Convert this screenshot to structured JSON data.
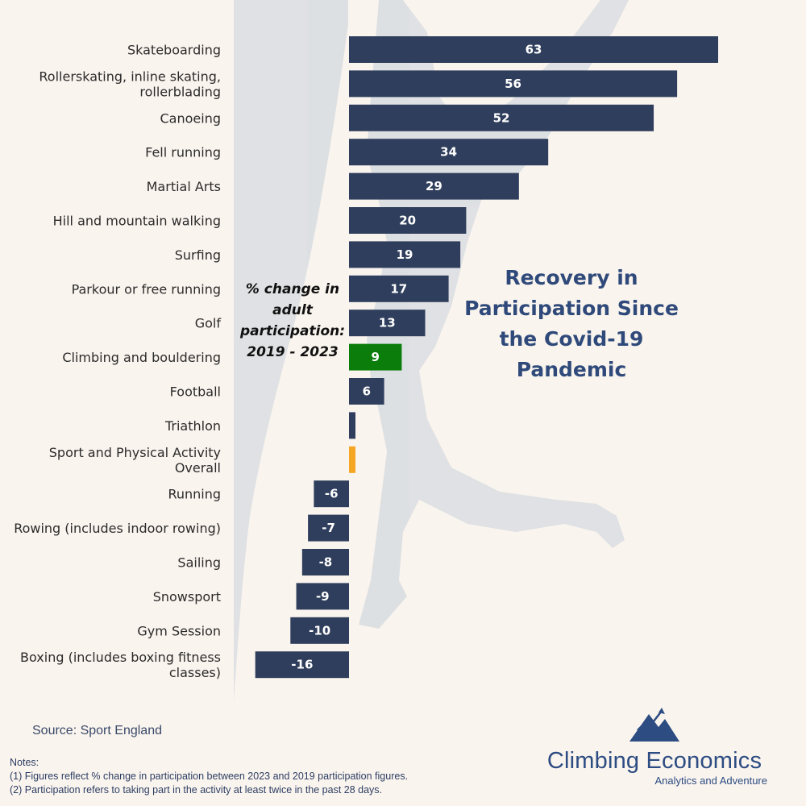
{
  "chart_data": {
    "type": "bar",
    "orientation": "horizontal",
    "title": "Recovery in Participation Since the Covid-19 Pandemic",
    "subtitle": "% change in adult participation: 2019 - 2023",
    "categories": [
      "Skateboarding",
      "Rollerskating, inline skating, rollerblading",
      "Canoeing",
      "Fell running",
      "Martial Arts",
      "Hill and mountain walking",
      "Surfing",
      "Parkour or free running",
      "Golf",
      "Climbing and bouldering",
      "Football",
      "Triathlon",
      "Sport and Physical Activity Overall",
      "Running",
      "Rowing (includes indoor rowing)",
      "Sailing",
      "Snowsport",
      "Gym Session",
      "Boxing (includes boxing fitness classes)"
    ],
    "values": [
      63,
      56,
      52,
      34,
      29,
      20,
      19,
      17,
      13,
      9,
      6,
      1,
      1,
      -6,
      -7,
      -8,
      -9,
      -10,
      -16
    ],
    "data_labels": [
      "63",
      "56",
      "52",
      "34",
      "29",
      "20",
      "19",
      "17",
      "13",
      "9",
      "6",
      "",
      "",
      "-6",
      "-7",
      "-8",
      "-9",
      "-10",
      "-16"
    ],
    "label_lines": [
      [
        "Skateboarding"
      ],
      [
        "Rollerskating, inline skating,",
        "rollerblading"
      ],
      [
        "Canoeing"
      ],
      [
        "Fell running"
      ],
      [
        "Martial Arts"
      ],
      [
        "Hill and mountain walking"
      ],
      [
        "Surfing"
      ],
      [
        "Parkour or free running"
      ],
      [
        "Golf"
      ],
      [
        "Climbing and bouldering"
      ],
      [
        "Football"
      ],
      [
        "Triathlon"
      ],
      [
        "Sport and Physical Activity",
        "Overall"
      ],
      [
        "Running"
      ],
      [
        "Rowing (includes indoor rowing)"
      ],
      [
        "Sailing"
      ],
      [
        "Snowsport"
      ],
      [
        "Gym Session"
      ],
      [
        "Boxing (includes boxing fitness",
        "classes)"
      ]
    ],
    "colors": {
      "default": "#2f3e5c",
      "highlight_climbing": "#0b7d0b",
      "highlight_overall": "#f5a623"
    },
    "highlights": {
      "Climbing and bouldering": "highlight_climbing",
      "Sport and Physical Activity Overall": "highlight_overall"
    },
    "xlim": [
      -16,
      63
    ],
    "grid": false,
    "legend": "none"
  },
  "source": "Source: Sport England",
  "notes": {
    "heading": "Notes:",
    "lines": [
      "(1) Figures reflect % change in participation between 2023 and 2019 participation figures.",
      "(2) Participation refers to taking part in the activity at least twice in the past 28 days."
    ]
  },
  "brand": {
    "name": "Climbing Economics",
    "tagline": "Analytics and Adventure",
    "logo_icon": "mountain-trend-icon",
    "colors": {
      "primary": "#2c4c82"
    }
  }
}
